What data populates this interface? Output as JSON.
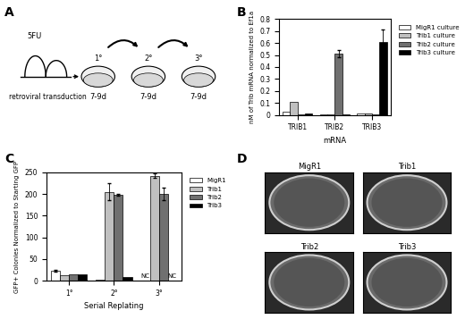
{
  "panel_labels": [
    "A",
    "B",
    "C",
    "D"
  ],
  "diagram": {
    "start": "5FU",
    "step": "retroviral transduction",
    "plates": [
      "1°",
      "2°",
      "3°"
    ],
    "duration": "7-9d"
  },
  "chart_data": [
    {
      "type": "bar",
      "x_label": "mRNA",
      "y_label": "nM of Trib mRNA normalized to Ef1a",
      "categories": [
        "TRIB1",
        "TRIB2",
        "TRIB3"
      ],
      "ylim": [
        0,
        0.8
      ],
      "yticks": [
        0,
        0.1,
        0.2,
        0.3,
        0.4,
        0.5,
        0.6,
        0.7,
        0.8
      ],
      "legend": "upper right",
      "series": [
        {
          "name": "MigR1 culture",
          "color": "#ffffff",
          "values": [
            0.025,
            0.002,
            0.015
          ],
          "errors": [
            null,
            null,
            null
          ]
        },
        {
          "name": "Trib1 culture",
          "color": "#c0c0c0",
          "values": [
            0.11,
            0.002,
            0.01
          ],
          "errors": [
            null,
            null,
            null
          ]
        },
        {
          "name": "Trib2 culture",
          "color": "#707070",
          "values": [
            0.005,
            0.51,
            0.005
          ],
          "errors": [
            null,
            0.03,
            null
          ]
        },
        {
          "name": "Trib3 culture",
          "color": "#000000",
          "values": [
            0.01,
            0.003,
            0.61
          ],
          "errors": [
            null,
            null,
            0.1
          ]
        }
      ]
    },
    {
      "type": "bar",
      "x_label": "Serial Replating",
      "y_label": "GFP+ Colonies Normalized to Starting GFP",
      "categories": [
        "1°",
        "2°",
        "3°"
      ],
      "ylim": [
        0,
        250
      ],
      "yticks": [
        0,
        50,
        100,
        150,
        200,
        250
      ],
      "legend": "upper right",
      "series": [
        {
          "name": "MigR1",
          "color": "#ffffff",
          "values": [
            23,
            3,
            null
          ],
          "errors": [
            3,
            null,
            null
          ]
        },
        {
          "name": "Trib1",
          "color": "#c0c0c0",
          "values": [
            12,
            205,
            242
          ],
          "errors": [
            null,
            20,
            5
          ]
        },
        {
          "name": "Trib2",
          "color": "#707070",
          "values": [
            15,
            198,
            200
          ],
          "errors": [
            null,
            2,
            15
          ]
        },
        {
          "name": "Trib3",
          "color": "#000000",
          "values": [
            15,
            8,
            null
          ],
          "errors": [
            null,
            null,
            null
          ]
        }
      ],
      "annotations": [
        {
          "category": "3°",
          "series": "MigR1",
          "text": "NC"
        },
        {
          "category": "3°",
          "series": "Trib3",
          "text": "NC"
        }
      ]
    }
  ],
  "plates": {
    "labels": [
      "MigR1",
      "Trib1",
      "Trib2",
      "Trib3"
    ]
  }
}
